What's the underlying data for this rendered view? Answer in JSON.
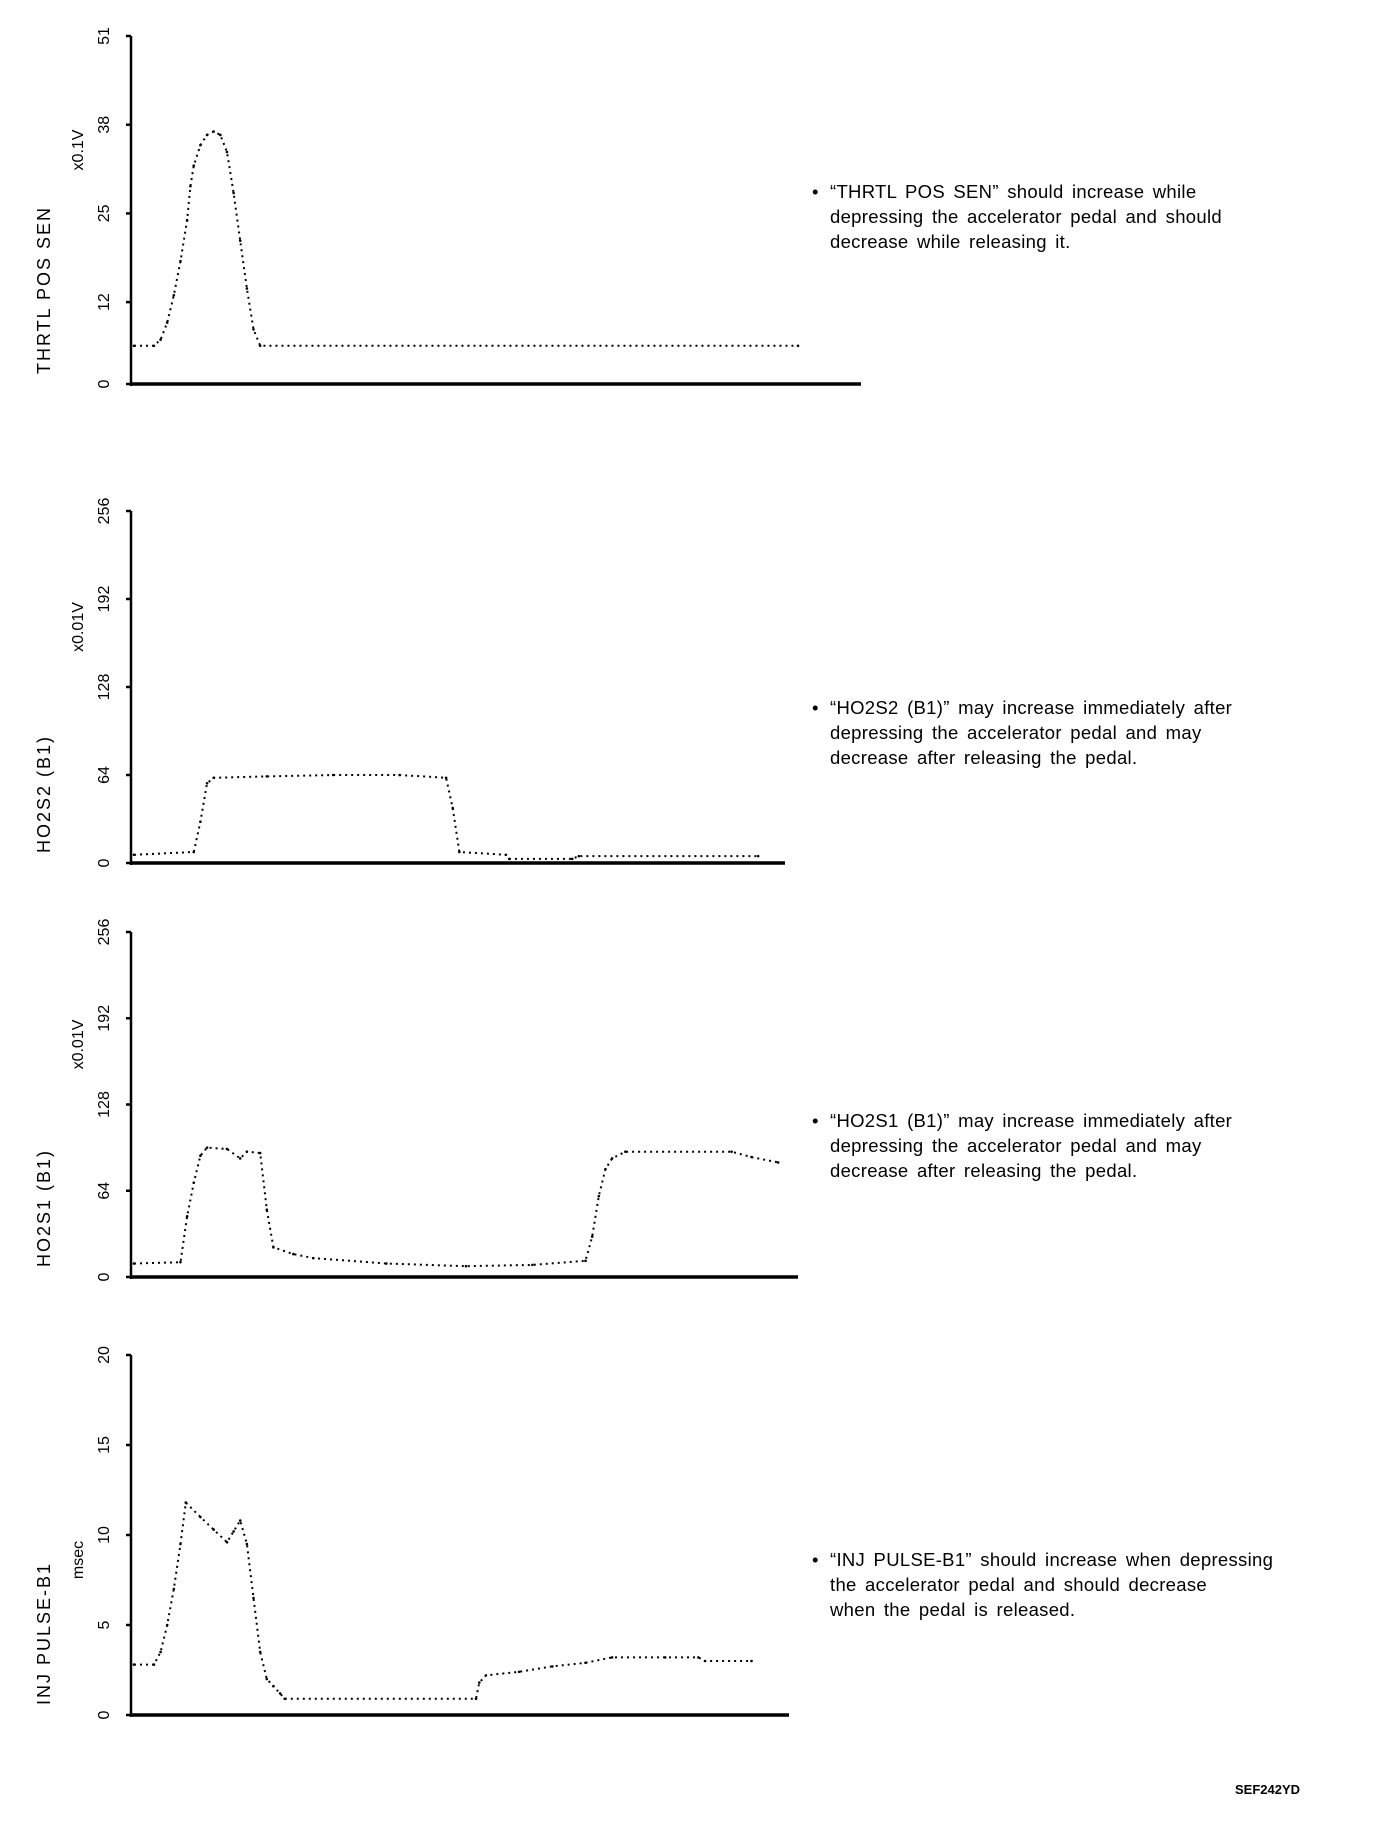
{
  "chart_data": [
    {
      "type": "line",
      "ylabel": "THRTL POS SEN",
      "unit": "x0.1V",
      "yticks": [
        "0",
        "12",
        "25",
        "38",
        "51"
      ],
      "ylim": [
        0,
        51
      ],
      "xlim": [
        0,
        100
      ],
      "x": [
        0,
        3,
        4,
        5,
        6,
        7,
        8,
        8.5,
        9,
        10,
        11,
        12,
        13,
        14,
        15,
        16,
        17,
        18,
        19,
        100
      ],
      "values": [
        5.6,
        5.6,
        6.5,
        9,
        13,
        18,
        24,
        29,
        32,
        35,
        36.5,
        37,
        36.5,
        34,
        28,
        21,
        14,
        8,
        5.6,
        5.6
      ],
      "note": "“THRTL POS SEN” should increase while\ndepressing the accelerator pedal and should\ndecrease while releasing it."
    },
    {
      "type": "line",
      "ylabel": "HO2S2 (B1)",
      "unit": "x0.01V",
      "yticks": [
        "0",
        "64",
        "128",
        "192",
        "256"
      ],
      "ylim": [
        0,
        256
      ],
      "xlim": [
        0,
        100
      ],
      "x": [
        0,
        9,
        10,
        11,
        12,
        20,
        30,
        40,
        47,
        48,
        49,
        56,
        56.5,
        66,
        67,
        94
      ],
      "values": [
        6,
        8,
        30,
        58,
        62,
        63,
        64,
        64,
        62,
        40,
        8,
        6,
        3,
        3,
        5,
        5
      ],
      "note": "“HO2S2 (B1)” may increase immediately after\ndepressing the accelerator pedal and may\ndecrease after releasing the pedal."
    },
    {
      "type": "line",
      "ylabel": "HO2S1 (B1)",
      "unit": "x0.01V",
      "yticks": [
        "0",
        "64",
        "128",
        "192",
        "256"
      ],
      "ylim": [
        0,
        256
      ],
      "xlim": [
        0,
        100
      ],
      "x": [
        0,
        7,
        8,
        9,
        10,
        11,
        14,
        16,
        17,
        19,
        20,
        21,
        24,
        27,
        38,
        50,
        60,
        68,
        69,
        70,
        71,
        72,
        74,
        90,
        93,
        97
      ],
      "values": [
        10,
        11,
        45,
        70,
        90,
        96,
        95,
        88,
        93,
        92,
        50,
        22,
        17,
        14,
        10,
        8,
        9,
        12,
        30,
        60,
        80,
        88,
        93,
        93,
        89,
        85
      ],
      "note": "“HO2S1 (B1)” may increase immediately after\ndepressing the accelerator pedal and may\ndecrease after releasing the pedal."
    },
    {
      "type": "line",
      "ylabel": "INJ PULSE-B1",
      "unit": "msec",
      "yticks": [
        "0",
        "5",
        "10",
        "15",
        "20"
      ],
      "ylim": [
        0,
        20
      ],
      "xlim": [
        0,
        100
      ],
      "x": [
        0,
        3,
        4,
        5,
        6,
        7,
        7.8,
        10,
        12,
        14,
        15,
        16,
        17,
        18,
        19,
        20,
        21,
        22,
        22.7,
        51.5,
        52,
        53,
        58,
        63,
        68,
        72,
        80,
        85,
        86,
        93
      ],
      "values": [
        2.8,
        2.8,
        3.5,
        5,
        7,
        9.5,
        11.8,
        11,
        10.3,
        9.6,
        10.2,
        10.8,
        9.5,
        6.5,
        3.5,
        2,
        1.6,
        1.2,
        0.9,
        0.9,
        1.8,
        2.2,
        2.4,
        2.7,
        2.9,
        3.2,
        3.2,
        3.2,
        3.0,
        3.0
      ],
      "note": "“INJ PULSE-B1” should increase when depressing\nthe accelerator pedal and should decrease\nwhen the pedal is released."
    }
  ],
  "figure_code": "SEF242YD"
}
